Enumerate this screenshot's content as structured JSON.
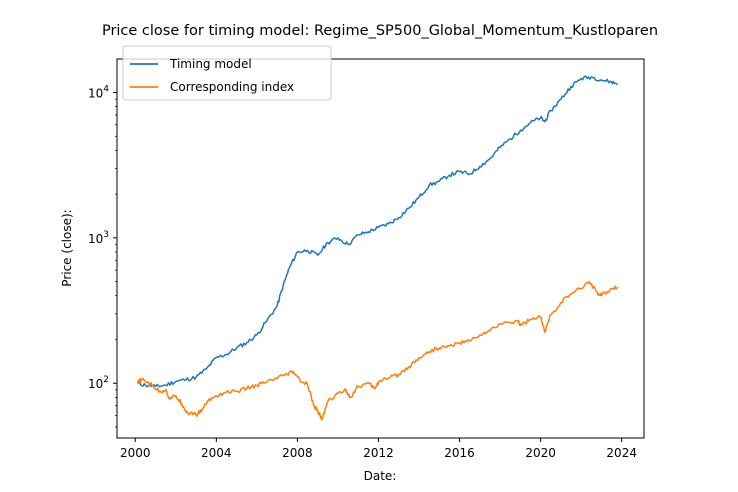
{
  "chart_data": {
    "type": "line",
    "title": "Price close for timing model: Regime_SP500_Global_Momentum_Kustloparen",
    "xlabel": "Date:",
    "ylabel": "Price (close):",
    "yscale": "log",
    "xlim": [
      1999.1,
      2025.1
    ],
    "ylim": [
      42,
      17000
    ],
    "x_ticks": [
      2000,
      2004,
      2008,
      2012,
      2016,
      2020,
      2024
    ],
    "x_tick_labels": [
      "2000",
      "2004",
      "2008",
      "2012",
      "2016",
      "2020",
      "2024"
    ],
    "y_major_ticks": [
      100,
      1000,
      10000
    ],
    "y_tick_labels": [
      {
        "base": "10",
        "exp": "2"
      },
      {
        "base": "10",
        "exp": "3"
      },
      {
        "base": "10",
        "exp": "4"
      }
    ],
    "y_minor_ticks": [
      50,
      60,
      70,
      80,
      90,
      200,
      300,
      400,
      500,
      600,
      700,
      800,
      900,
      2000,
      3000,
      4000,
      5000,
      6000,
      7000,
      8000,
      9000
    ],
    "legend_position": "upper-left",
    "grid": false,
    "series": [
      {
        "name": "Timing model",
        "color": "#1f77b4",
        "x": [
          2000.1,
          2000.5,
          2001.0,
          2001.5,
          2002.0,
          2002.5,
          2003.0,
          2003.5,
          2004.0,
          2004.5,
          2005.0,
          2005.5,
          2006.0,
          2006.5,
          2007.0,
          2007.3,
          2007.6,
          2008.0,
          2008.5,
          2009.0,
          2009.5,
          2010.0,
          2010.5,
          2011.0,
          2011.5,
          2012.0,
          2012.5,
          2013.0,
          2013.5,
          2014.0,
          2014.5,
          2015.0,
          2015.5,
          2016.0,
          2016.5,
          2017.0,
          2017.5,
          2018.0,
          2018.5,
          2019.0,
          2019.5,
          2020.0,
          2020.2,
          2020.5,
          2021.0,
          2021.5,
          2022.0,
          2022.5,
          2023.0,
          2023.5,
          2023.8
        ],
        "y": [
          100,
          97,
          95,
          97,
          103,
          106,
          110,
          125,
          150,
          158,
          175,
          190,
          215,
          270,
          340,
          470,
          620,
          800,
          820,
          760,
          930,
          1000,
          900,
          1050,
          1100,
          1180,
          1250,
          1380,
          1600,
          1900,
          2300,
          2450,
          2700,
          2850,
          2750,
          3100,
          3500,
          4200,
          4800,
          5500,
          6200,
          6700,
          6300,
          7500,
          9000,
          11000,
          12500,
          12800,
          12200,
          11800,
          11500
        ]
      },
      {
        "name": "Corresponding index",
        "color": "#ff7f0e",
        "x": [
          2000.1,
          2000.3,
          2000.6,
          2000.9,
          2001.2,
          2001.5,
          2001.7,
          2002.0,
          2002.3,
          2002.6,
          2002.8,
          2003.0,
          2003.3,
          2003.6,
          2004.0,
          2004.5,
          2005.0,
          2005.5,
          2006.0,
          2006.5,
          2007.0,
          2007.5,
          2007.8,
          2008.2,
          2008.5,
          2008.8,
          2009.0,
          2009.2,
          2009.5,
          2010.0,
          2010.4,
          2010.6,
          2011.0,
          2011.5,
          2011.8,
          2012.0,
          2012.5,
          2013.0,
          2013.5,
          2014.0,
          2014.5,
          2015.0,
          2015.5,
          2016.0,
          2016.5,
          2017.0,
          2017.5,
          2018.0,
          2018.9,
          2019.0,
          2019.5,
          2020.0,
          2020.2,
          2020.5,
          2021.0,
          2021.5,
          2022.0,
          2022.4,
          2022.8,
          2023.0,
          2023.5,
          2023.8
        ],
        "y": [
          100,
          106,
          102,
          95,
          88,
          90,
          78,
          82,
          72,
          62,
          63,
          60,
          66,
          76,
          82,
          87,
          88,
          92,
          97,
          102,
          108,
          115,
          120,
          102,
          98,
          70,
          65,
          56,
          75,
          85,
          90,
          80,
          95,
          100,
          92,
          102,
          108,
          115,
          130,
          150,
          165,
          175,
          180,
          190,
          195,
          215,
          230,
          255,
          270,
          250,
          275,
          285,
          225,
          295,
          360,
          410,
          450,
          500,
          420,
          400,
          450,
          460
        ]
      }
    ]
  }
}
